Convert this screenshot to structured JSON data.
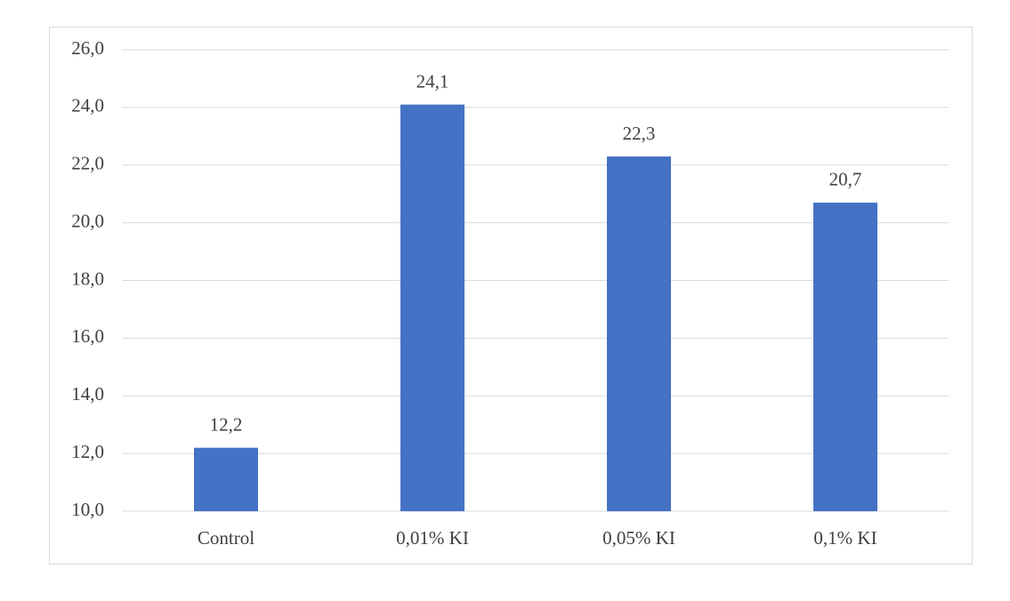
{
  "chart_data": {
    "type": "bar",
    "categories": [
      "Control",
      "0,01% KI",
      "0,05% KI",
      "0,1% KI"
    ],
    "values": [
      12.2,
      24.1,
      22.3,
      20.7
    ],
    "value_labels": [
      "12,2",
      "24,1",
      "22,3",
      "20,7"
    ],
    "color": "#4472c4",
    "ylim": [
      10,
      26
    ],
    "yticks": [
      {
        "value": 10,
        "label": "10,0"
      },
      {
        "value": 12,
        "label": "12,0"
      },
      {
        "value": 14,
        "label": "14,0"
      },
      {
        "value": 16,
        "label": "16,0"
      },
      {
        "value": 18,
        "label": "18,0"
      },
      {
        "value": 20,
        "label": "20,0"
      },
      {
        "value": 22,
        "label": "22,0"
      },
      {
        "value": 24,
        "label": "24,0"
      },
      {
        "value": 26,
        "label": "26,0"
      }
    ],
    "grid": true
  }
}
